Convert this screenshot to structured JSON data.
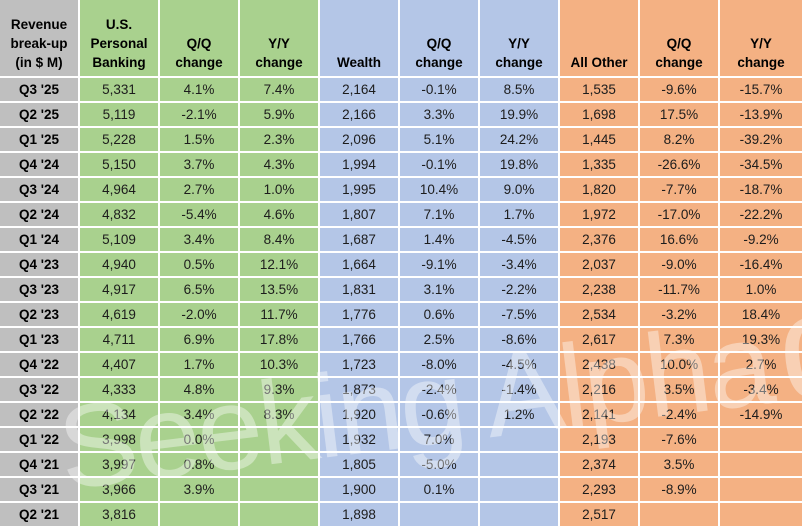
{
  "chart_data": {
    "type": "table",
    "title": "Revenue break-up (in $ M)",
    "columns": [
      "Revenue\nbreak-up\n(in $ M)",
      "U.S.\nPersonal\nBanking",
      "Q/Q\nchange",
      "Y/Y\nchange",
      "Wealth",
      "Q/Q\nchange",
      "Y/Y\nchange",
      "All Other",
      "Q/Q\nchange",
      "Y/Y\nchange"
    ],
    "column_groups": [
      {
        "name": "quarter-label",
        "color": "#BFBFBF",
        "cols": [
          0
        ]
      },
      {
        "name": "us-personal-banking",
        "color": "#A9D18E",
        "cols": [
          1,
          2,
          3
        ]
      },
      {
        "name": "wealth",
        "color": "#B4C6E7",
        "cols": [
          4,
          5,
          6
        ]
      },
      {
        "name": "all-other",
        "color": "#F4B183",
        "cols": [
          7,
          8,
          9
        ]
      }
    ],
    "rows": [
      [
        "Q3 '25",
        "5,331",
        "4.1%",
        "7.4%",
        "2,164",
        "-0.1%",
        "8.5%",
        "1,535",
        "-9.6%",
        "-15.7%"
      ],
      [
        "Q2 '25",
        "5,119",
        "-2.1%",
        "5.9%",
        "2,166",
        "3.3%",
        "19.9%",
        "1,698",
        "17.5%",
        "-13.9%"
      ],
      [
        "Q1 '25",
        "5,228",
        "1.5%",
        "2.3%",
        "2,096",
        "5.1%",
        "24.2%",
        "1,445",
        "8.2%",
        "-39.2%"
      ],
      [
        "Q4 '24",
        "5,150",
        "3.7%",
        "4.3%",
        "1,994",
        "-0.1%",
        "19.8%",
        "1,335",
        "-26.6%",
        "-34.5%"
      ],
      [
        "Q3 '24",
        "4,964",
        "2.7%",
        "1.0%",
        "1,995",
        "10.4%",
        "9.0%",
        "1,820",
        "-7.7%",
        "-18.7%"
      ],
      [
        "Q2 '24",
        "4,832",
        "-5.4%",
        "4.6%",
        "1,807",
        "7.1%",
        "1.7%",
        "1,972",
        "-17.0%",
        "-22.2%"
      ],
      [
        "Q1 '24",
        "5,109",
        "3.4%",
        "8.4%",
        "1,687",
        "1.4%",
        "-4.5%",
        "2,376",
        "16.6%",
        "-9.2%"
      ],
      [
        "Q4 '23",
        "4,940",
        "0.5%",
        "12.1%",
        "1,664",
        "-9.1%",
        "-3.4%",
        "2,037",
        "-9.0%",
        "-16.4%"
      ],
      [
        "Q3 '23",
        "4,917",
        "6.5%",
        "13.5%",
        "1,831",
        "3.1%",
        "-2.2%",
        "2,238",
        "-11.7%",
        "1.0%"
      ],
      [
        "Q2 '23",
        "4,619",
        "-2.0%",
        "11.7%",
        "1,776",
        "0.6%",
        "-7.5%",
        "2,534",
        "-3.2%",
        "18.4%"
      ],
      [
        "Q1 '23",
        "4,711",
        "6.9%",
        "17.8%",
        "1,766",
        "2.5%",
        "-8.6%",
        "2,617",
        "7.3%",
        "19.3%"
      ],
      [
        "Q4 '22",
        "4,407",
        "1.7%",
        "10.3%",
        "1,723",
        "-8.0%",
        "-4.5%",
        "2,438",
        "10.0%",
        "2.7%"
      ],
      [
        "Q3 '22",
        "4,333",
        "4.8%",
        "9.3%",
        "1,873",
        "-2.4%",
        "-1.4%",
        "2,216",
        "3.5%",
        "-3.4%"
      ],
      [
        "Q2 '22",
        "4,134",
        "3.4%",
        "8.3%",
        "1,920",
        "-0.6%",
        "1.2%",
        "2,141",
        "-2.4%",
        "-14.9%"
      ],
      [
        "Q1 '22",
        "3,998",
        "0.0%",
        "",
        "1,932",
        "7.0%",
        "",
        "2,193",
        "-7.6%",
        ""
      ],
      [
        "Q4 '21",
        "3,997",
        "0.8%",
        "",
        "1,805",
        "-5.0%",
        "",
        "2,374",
        "3.5%",
        ""
      ],
      [
        "Q3 '21",
        "3,966",
        "3.9%",
        "",
        "1,900",
        "0.1%",
        "",
        "2,293",
        "-8.9%",
        ""
      ],
      [
        "Q2 '21",
        "3,816",
        "",
        "",
        "1,898",
        "",
        "",
        "2,517",
        "",
        ""
      ]
    ]
  },
  "watermark": {
    "text": "Seeking Alpha",
    "symbol": "α"
  }
}
